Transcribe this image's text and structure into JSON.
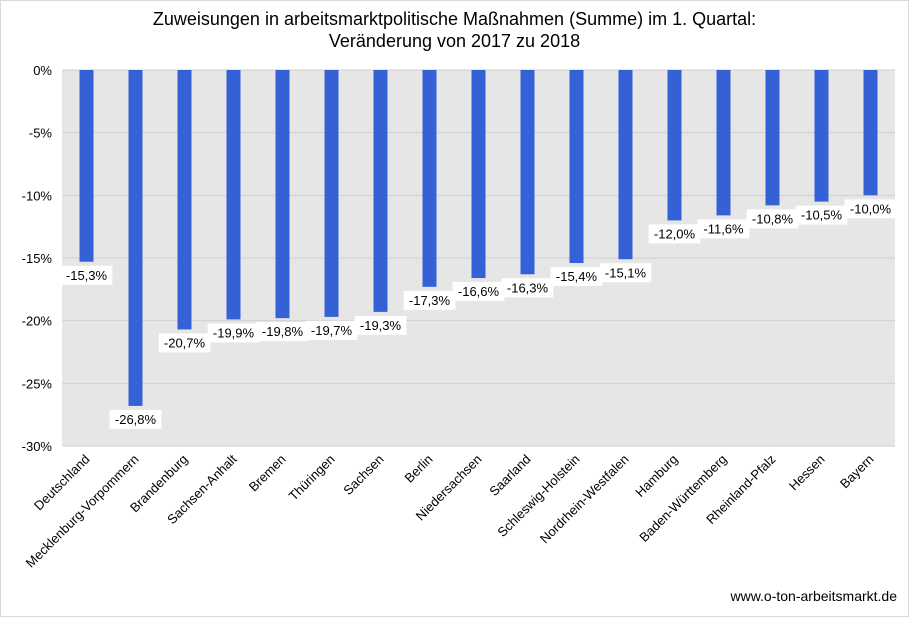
{
  "chart_data": {
    "type": "bar",
    "title_line1": "Zuweisungen in arbeitsmarktpolitische Maßnahmen (Summe) im 1. Quartal:",
    "title_line2": "Veränderung von 2017 zu 2018",
    "xlabel": "",
    "ylabel": "",
    "categories": [
      "Deutschland",
      "Mecklenburg-Vorpommern",
      "Brandenburg",
      "Sachsen-Anhalt",
      "Bremen",
      "Thüringen",
      "Sachsen",
      "Berlin",
      "Niedersachsen",
      "Saarland",
      "Schleswig-Holstein",
      "Nordrhein-Westfalen",
      "Hamburg",
      "Baden-Württemberg",
      "Rheinland-Pfalz",
      "Hessen",
      "Bayern"
    ],
    "values": [
      -15.3,
      -26.8,
      -20.7,
      -19.9,
      -19.8,
      -19.7,
      -19.3,
      -17.3,
      -16.6,
      -16.3,
      -15.4,
      -15.1,
      -12.0,
      -11.6,
      -10.8,
      -10.5,
      -10.0
    ],
    "data_labels": [
      "-15,3%",
      "-26,8%",
      "-20,7%",
      "-19,9%",
      "-19,8%",
      "-19,7%",
      "-19,3%",
      "-17,3%",
      "-16,6%",
      "-16,3%",
      "-15,4%",
      "-15,1%",
      "-12,0%",
      "-11,6%",
      "-10,8%",
      "-10,5%",
      "-10,0%"
    ],
    "ylim": [
      -30,
      0
    ],
    "yticks": [
      0,
      -5,
      -10,
      -15,
      -20,
      -25,
      -30
    ],
    "ytick_labels": [
      "0%",
      "-5%",
      "-10%",
      "-15%",
      "-20%",
      "-25%",
      "-30%"
    ],
    "grid": true,
    "colors": {
      "bar": "#3561d6",
      "plot_bg": "#e6e6e6",
      "grid": "#d0d0d0"
    }
  },
  "source_note": "www.o-ton-arbeitsmarkt.de"
}
